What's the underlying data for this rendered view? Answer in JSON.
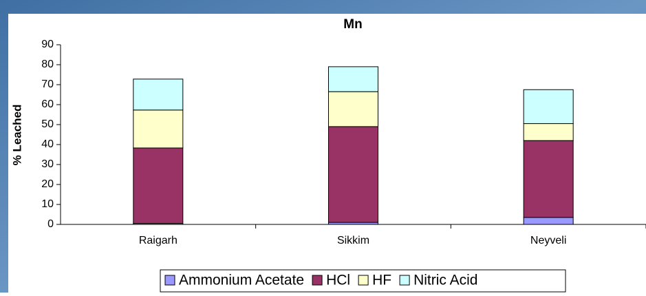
{
  "chart_data": {
    "type": "stacked_bar",
    "title": "Mn",
    "y_label": "% Leached",
    "categories": [
      "Raigarh",
      "Sikkim",
      "Neyveli"
    ],
    "series": [
      {
        "name": "Ammonium Acetate",
        "color": "#9999ff",
        "values": [
          0.5,
          1,
          3.5
        ]
      },
      {
        "name": "HCl",
        "color": "#993366",
        "values": [
          37.8,
          48,
          38.5
        ]
      },
      {
        "name": "HF",
        "color": "#ffffcc",
        "values": [
          19,
          17.5,
          8.5
        ]
      },
      {
        "name": "Nitric Acid",
        "color": "#ccffff",
        "values": [
          15.5,
          12.5,
          17
        ]
      }
    ],
    "ylim": [
      0,
      90
    ],
    "yticks": [
      0,
      10,
      20,
      30,
      40,
      50,
      60,
      70,
      80,
      90
    ]
  }
}
